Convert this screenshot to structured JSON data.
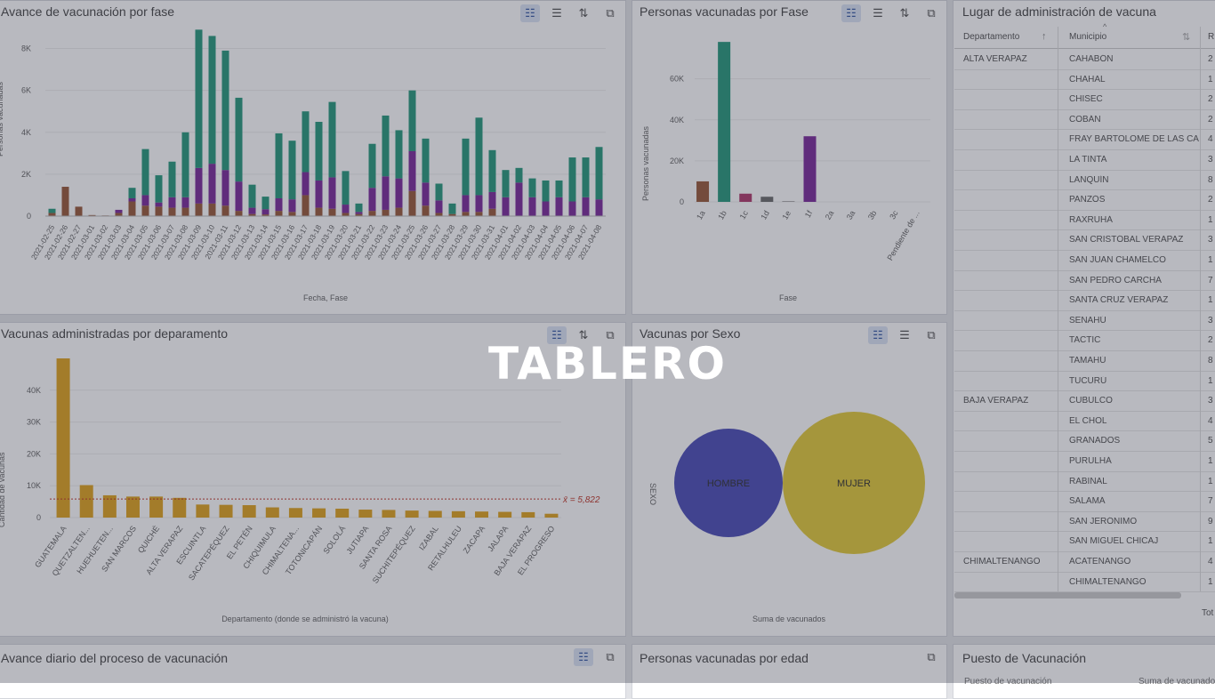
{
  "overlay_title": "TABLERO",
  "panels": {
    "avance_fase": {
      "title": "Avance de vacunación por fase"
    },
    "personas_fase": {
      "title": "Personas vacunadas por Fase"
    },
    "lugar": {
      "title": "Lugar de administración de vacuna"
    },
    "departamento": {
      "title": "Vacunas administradas por deparamento"
    },
    "sexo": {
      "title": "Vacunas por Sexo"
    },
    "avance_diario": {
      "title": "Avance diario del proceso de vacunación"
    },
    "edad": {
      "title": "Personas vacunadas por edad"
    },
    "puesto": {
      "title": "Puesto de Vacunación",
      "header_partial": [
        "Puesto de vacunación",
        "Suma de vacunado"
      ]
    }
  },
  "table": {
    "headers": [
      "Departamento",
      "Municipio",
      "R"
    ],
    "footer_partial": "Tot",
    "rows": [
      {
        "dep": "ALTA VERAPAZ",
        "mun": "CAHABÓN",
        "val": "2"
      },
      {
        "dep": "",
        "mun": "CHAHAL",
        "val": "1"
      },
      {
        "dep": "",
        "mun": "CHISEC",
        "val": "2"
      },
      {
        "dep": "",
        "mun": "COBÁN",
        "val": "2"
      },
      {
        "dep": "",
        "mun": "FRAY BARTOLOMÉ DE LAS CA",
        "val": "4"
      },
      {
        "dep": "",
        "mun": "LA TINTA",
        "val": "3"
      },
      {
        "dep": "",
        "mun": "LANQUÍN",
        "val": "8"
      },
      {
        "dep": "",
        "mun": "PANZÓS",
        "val": "2"
      },
      {
        "dep": "",
        "mun": "RAXRUHÁ",
        "val": "1"
      },
      {
        "dep": "",
        "mun": "SAN CRISTÓBAL VERAPAZ",
        "val": "3"
      },
      {
        "dep": "",
        "mun": "SAN JUAN CHAMELCO",
        "val": "1"
      },
      {
        "dep": "",
        "mun": "SAN PEDRO CARCHÁ",
        "val": "7"
      },
      {
        "dep": "",
        "mun": "SANTA CRUZ VERAPAZ",
        "val": "1"
      },
      {
        "dep": "",
        "mun": "SENAHÚ",
        "val": "3"
      },
      {
        "dep": "",
        "mun": "TACTIC",
        "val": "2"
      },
      {
        "dep": "",
        "mun": "TAMAHÚ",
        "val": "8"
      },
      {
        "dep": "",
        "mun": "TUCURÚ",
        "val": "1"
      },
      {
        "dep": "BAJA VERAPAZ",
        "mun": "CUBULCO",
        "val": "3"
      },
      {
        "dep": "",
        "mun": "EL CHOL",
        "val": "4"
      },
      {
        "dep": "",
        "mun": "GRANADOS",
        "val": "5"
      },
      {
        "dep": "",
        "mun": "PURULHÁ",
        "val": "1"
      },
      {
        "dep": "",
        "mun": "RABINAL",
        "val": "1"
      },
      {
        "dep": "",
        "mun": "SALAMÁ",
        "val": "7"
      },
      {
        "dep": "",
        "mun": "SAN JERÓNIMO",
        "val": "9"
      },
      {
        "dep": "",
        "mun": "SAN MIGUEL CHICAJ",
        "val": "1"
      },
      {
        "dep": "CHIMALTENANGO",
        "mun": "ACATENANGO",
        "val": "4"
      },
      {
        "dep": "",
        "mun": "CHIMALTENANGO",
        "val": "1"
      }
    ]
  },
  "chart_data": [
    {
      "type": "bar",
      "stacked": true,
      "xlabel": "Fecha, Fase",
      "ylabel": "Personas vacunadas",
      "ylim": [
        0,
        9000
      ],
      "yticks": [
        "0",
        "2K",
        "4K",
        "6K",
        "8K"
      ],
      "categories": [
        "2021-02-25",
        "2021-02-26",
        "2021-02-27",
        "2021-03-01",
        "2021-03-02",
        "2021-03-03",
        "2021-03-04",
        "2021-03-05",
        "2021-03-06",
        "2021-03-07",
        "2021-03-08",
        "2021-03-09",
        "2021-03-10",
        "2021-03-11",
        "2021-03-12",
        "2021-03-13",
        "2021-03-14",
        "2021-03-15",
        "2021-03-16",
        "2021-03-17",
        "2021-03-18",
        "2021-03-19",
        "2021-03-20",
        "2021-03-21",
        "2021-03-22",
        "2021-03-23",
        "2021-03-24",
        "2021-03-25",
        "2021-03-26",
        "2021-03-27",
        "2021-03-28",
        "2021-03-29",
        "2021-03-30",
        "2021-03-31",
        "2021-04-01",
        "2021-04-02",
        "2021-04-03",
        "2021-04-04",
        "2021-04-05",
        "2021-04-06",
        "2021-04-07",
        "2021-04-08"
      ],
      "colors": [
        "#9a5b3c",
        "#7d2e9c",
        "#2a9a7e"
      ],
      "series": [
        {
          "values": [
            150,
            1400,
            450,
            50,
            30,
            150,
            700,
            500,
            450,
            400,
            400,
            600,
            600,
            500,
            250,
            100,
            80,
            250,
            200,
            1000,
            400,
            350,
            150,
            100,
            250,
            300,
            400,
            1200,
            500,
            150,
            100,
            200,
            200,
            350,
            0,
            0,
            0,
            0,
            0,
            0,
            0,
            0
          ]
        },
        {
          "values": [
            0,
            0,
            0,
            0,
            0,
            150,
            150,
            500,
            200,
            500,
            500,
            1700,
            1900,
            1700,
            1400,
            300,
            250,
            600,
            600,
            1100,
            1300,
            1500,
            400,
            100,
            1100,
            1600,
            1400,
            1900,
            1100,
            600,
            0,
            800,
            800,
            800,
            900,
            1600,
            900,
            700,
            900,
            700,
            900,
            800
          ]
        },
        {
          "values": [
            200,
            0,
            0,
            0,
            0,
            0,
            500,
            2200,
            1300,
            1700,
            3100,
            6600,
            6100,
            5700,
            4000,
            1100,
            600,
            3100,
            2800,
            2900,
            2800,
            3600,
            1600,
            400,
            2100,
            2900,
            2300,
            2900,
            2100,
            800,
            500,
            2700,
            3700,
            2000,
            1300,
            700,
            900,
            1000,
            800,
            2100,
            1900,
            2500
          ]
        }
      ]
    },
    {
      "type": "bar",
      "xlabel": "Fase",
      "ylabel": "Personas vacunadas",
      "ylim": [
        0,
        85000
      ],
      "yticks": [
        "0",
        "20K",
        "40K",
        "60K"
      ],
      "categories": [
        "1a",
        "1b",
        "1c",
        "1d",
        "1e",
        "1f",
        "2a",
        "3a",
        "3b",
        "3c",
        "Pendiente de ..."
      ],
      "values": [
        10000,
        78000,
        4000,
        2500,
        300,
        32000,
        0,
        0,
        0,
        0,
        0
      ],
      "colors": [
        "#9a5b3c",
        "#2a9a7e",
        "#b03d6e",
        "#6e6e6e",
        "#8a8a8a",
        "#7d2e9c",
        "#999",
        "#999",
        "#999",
        "#999",
        "#999"
      ]
    },
    {
      "type": "bar",
      "xlabel": "Departamento (donde se administró la vacuna)",
      "ylabel": "Cantidad de vacunas",
      "ylim": [
        0,
        50000
      ],
      "yticks": [
        "0",
        "10K",
        "20K",
        "30K",
        "40K"
      ],
      "categories": [
        "GUATEMALA",
        "QUETZALTEN...",
        "HUEHUETEN...",
        "SAN MARCOS",
        "QUICHÉ",
        "ALTA VERAPAZ",
        "ESCUINTLA",
        "SACATEPÉQUEZ",
        "EL PETÉN",
        "CHIQUIMULA",
        "CHIMALTENA...",
        "TOTONICAPÁN",
        "SOLOLÁ",
        "JUTIAPA",
        "SANTA ROSA",
        "SUCHITEPÉQUEZ",
        "IZABAL",
        "RETALHULEU",
        "ZACAPA",
        "JALAPA",
        "BAJA VERAPAZ",
        "EL PROGRESO"
      ],
      "values": [
        50000,
        10200,
        7000,
        6600,
        6600,
        6200,
        4100,
        4000,
        3900,
        3200,
        3000,
        2900,
        2800,
        2500,
        2400,
        2200,
        2100,
        2000,
        1900,
        1800,
        1700,
        1200
      ],
      "average_label": "x̄ = 5,822",
      "average": 5822,
      "color": "#e0a421"
    },
    {
      "type": "bubble",
      "xlabel": "Suma de vacunados",
      "ylabel": "SEXO",
      "categories": [
        "HOMBRE",
        "MUJER"
      ],
      "colors": [
        "#4e50b8",
        "#e3cb3d"
      ]
    }
  ]
}
